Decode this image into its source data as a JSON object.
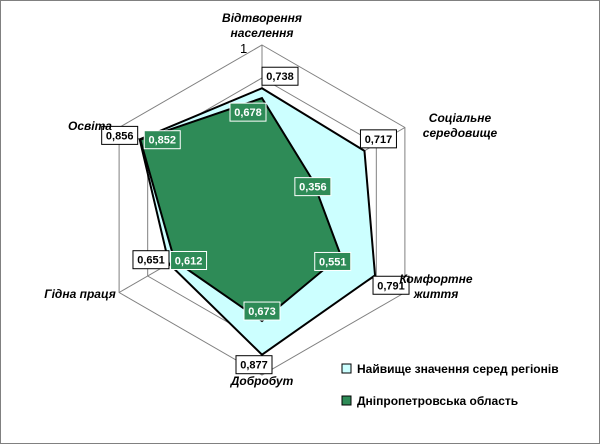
{
  "chart_data": {
    "type": "radar",
    "categories": [
      [
        "Відтворення",
        "населення"
      ],
      [
        "Соціальне",
        "середовище"
      ],
      [
        "Комфортне",
        "життя"
      ],
      [
        "Добробут"
      ],
      [
        "Гідна праця"
      ],
      [
        "Освіта"
      ]
    ],
    "rlim": [
      0,
      1
    ],
    "ticks": [
      "0",
      "1"
    ],
    "grid": true,
    "legend_position": "bottom-right",
    "series": [
      {
        "name": "Найвище значення серед регіонів",
        "values": [
          0.738,
          0.717,
          0.791,
          0.877,
          0.651,
          0.856
        ],
        "labels": [
          "0,738",
          "0,717",
          "0,791",
          "0,877",
          "0,651",
          "0,856"
        ],
        "color": "#ccffff"
      },
      {
        "name": "Дніпропетровська область",
        "values": [
          0.678,
          0.356,
          0.551,
          0.673,
          0.612,
          0.852
        ],
        "labels": [
          "0,678",
          "0,356",
          "0,551",
          "0,673",
          "0,612",
          "0,852"
        ],
        "color": "#2e8b57"
      }
    ]
  }
}
